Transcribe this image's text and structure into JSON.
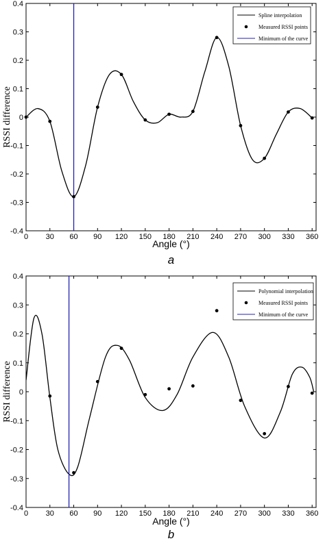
{
  "chart_data": [
    {
      "type": "line",
      "panel_label": "a",
      "xlabel": "Angle (°)",
      "ylabel": "RSSI difference",
      "xlim": [
        0,
        365
      ],
      "ylim": [
        -0.4,
        0.4
      ],
      "xticks": [
        0,
        30,
        60,
        90,
        120,
        150,
        180,
        210,
        240,
        270,
        300,
        330,
        360
      ],
      "yticks": [
        -0.4,
        -0.3,
        -0.2,
        -0.1,
        0,
        0.1,
        0.2,
        0.3,
        0.4
      ],
      "legend_position": "top-right",
      "legend": [
        "Spline interpolation",
        "Measured RSSI points",
        "Minimum of the curve"
      ],
      "points": {
        "x": [
          0,
          30,
          60,
          90,
          120,
          150,
          180,
          210,
          240,
          270,
          300,
          330,
          360
        ],
        "y": [
          0.0,
          -0.015,
          -0.28,
          0.035,
          0.15,
          -0.01,
          0.01,
          0.02,
          0.28,
          -0.03,
          -0.145,
          0.018,
          -0.003
        ]
      },
      "curve": {
        "x": [
          0,
          15,
          30,
          45,
          60,
          75,
          90,
          105,
          120,
          135,
          150,
          165,
          180,
          195,
          210,
          225,
          240,
          255,
          270,
          285,
          300,
          315,
          330,
          345,
          360
        ],
        "y": [
          0.0,
          0.03,
          -0.015,
          -0.19,
          -0.28,
          -0.17,
          0.035,
          0.15,
          0.15,
          0.055,
          -0.01,
          -0.02,
          0.01,
          0.0,
          0.02,
          0.16,
          0.28,
          0.18,
          -0.03,
          -0.15,
          -0.145,
          -0.06,
          0.018,
          0.03,
          -0.003
        ]
      },
      "minimum_line_x": 60
    },
    {
      "type": "line",
      "panel_label": "b",
      "xlabel": "Angle (°)",
      "ylabel": "RSSI difference",
      "xlim": [
        0,
        365
      ],
      "ylim": [
        -0.4,
        0.4
      ],
      "xticks": [
        0,
        30,
        60,
        90,
        120,
        150,
        180,
        210,
        240,
        270,
        300,
        330,
        360
      ],
      "yticks": [
        -0.4,
        -0.3,
        -0.2,
        -0.1,
        0,
        0.1,
        0.2,
        0.3,
        0.4
      ],
      "legend_position": "top-right",
      "legend": [
        "Polynomial interpolation",
        "Measured RSSI points",
        "Minimum of the curve"
      ],
      "points": {
        "x": [
          30,
          60,
          90,
          120,
          150,
          180,
          210,
          240,
          270,
          300,
          330,
          360
        ],
        "y": [
          -0.015,
          -0.28,
          0.035,
          0.15,
          -0.01,
          0.01,
          0.02,
          0.28,
          -0.03,
          -0.145,
          0.018,
          -0.005
        ]
      },
      "curve": {
        "x": [
          0,
          10,
          20,
          30,
          40,
          54,
          65,
          80,
          100,
          115,
          130,
          150,
          172,
          190,
          210,
          235,
          255,
          275,
          300,
          320,
          335,
          347,
          357,
          362
        ],
        "y": [
          0.04,
          0.255,
          0.2,
          -0.02,
          -0.2,
          -0.285,
          -0.26,
          -0.09,
          0.12,
          0.16,
          0.11,
          -0.02,
          -0.065,
          -0.01,
          0.12,
          0.205,
          0.12,
          -0.05,
          -0.16,
          -0.07,
          0.06,
          0.085,
          0.05,
          0.0
        ]
      },
      "minimum_line_x": 54
    }
  ]
}
